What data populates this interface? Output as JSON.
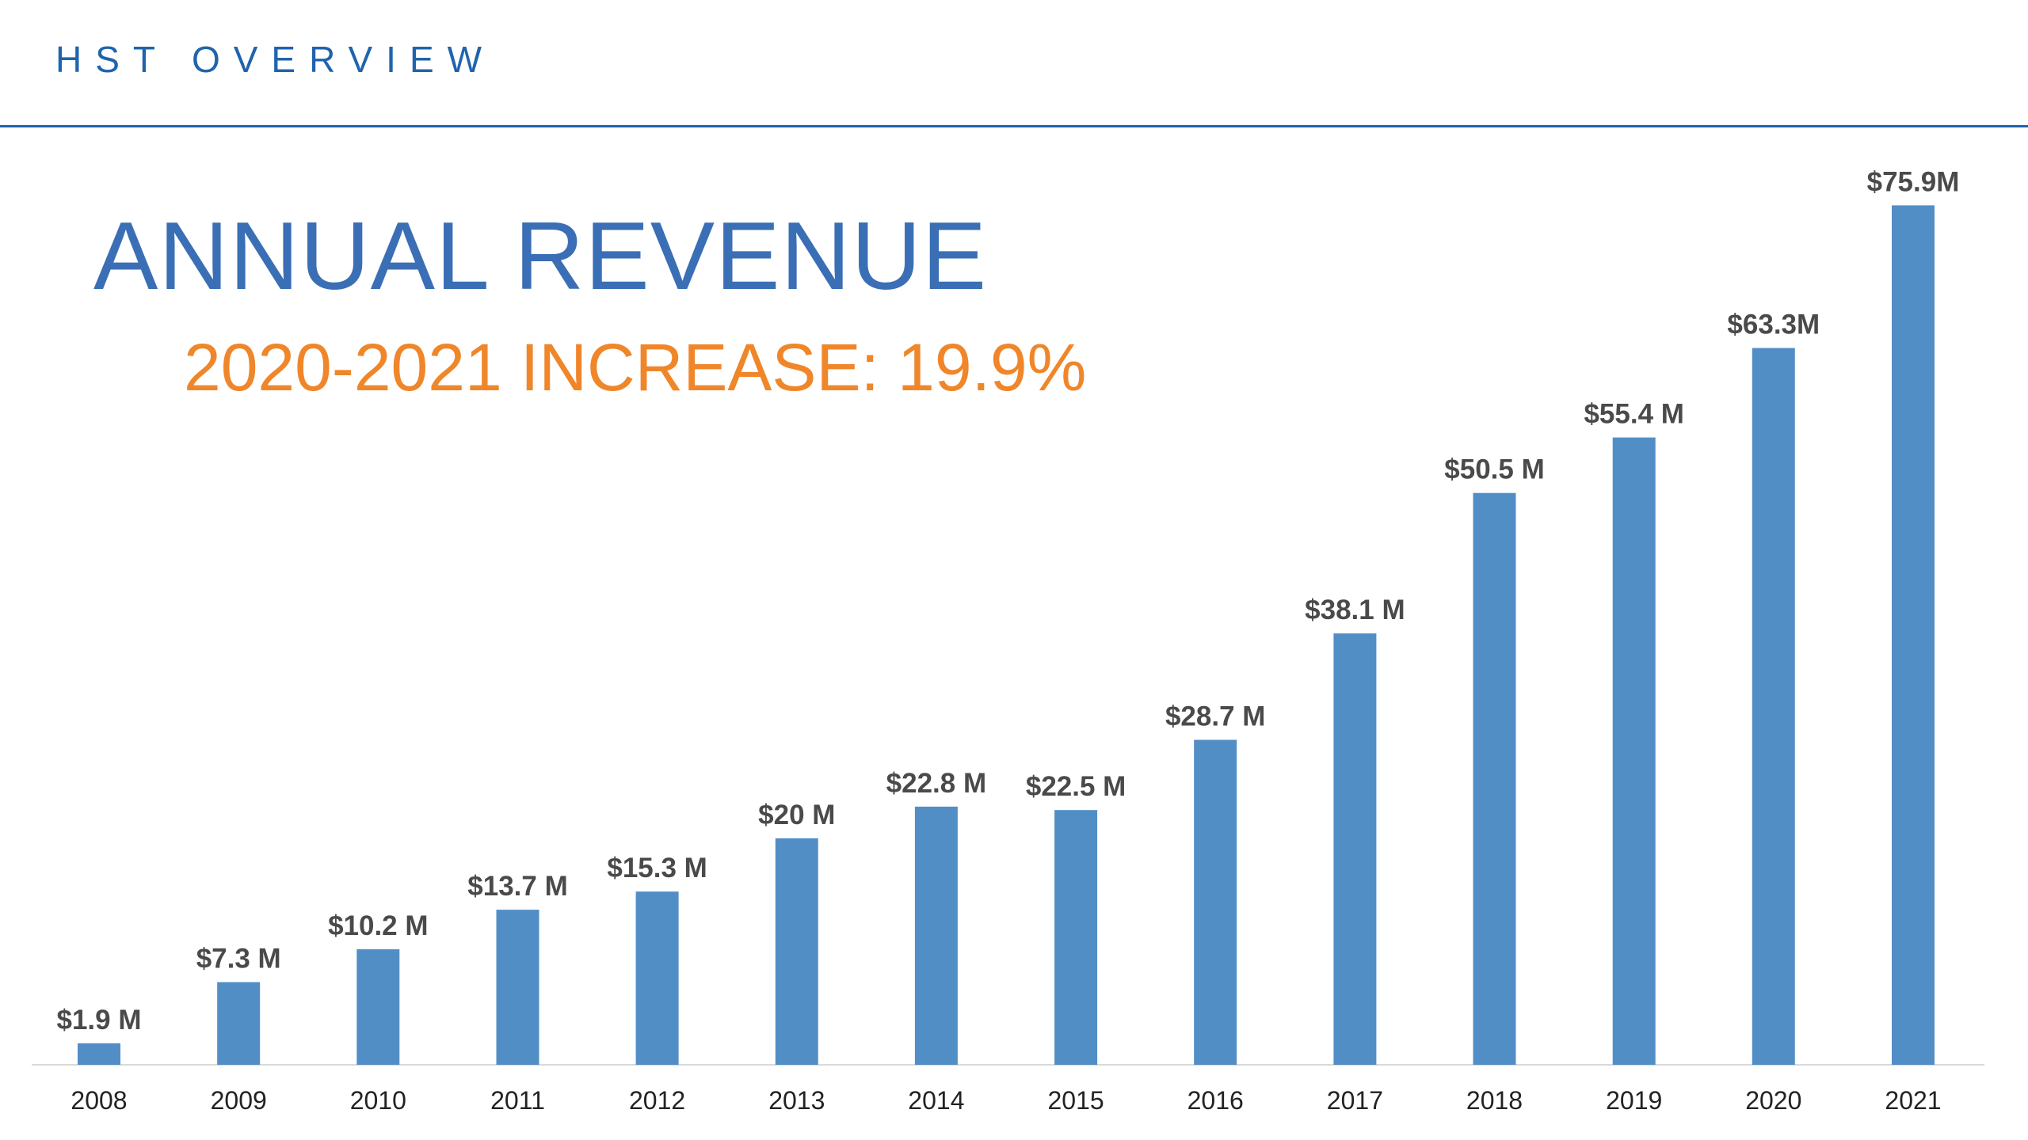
{
  "header": {
    "section_title": "HST OVERVIEW"
  },
  "colors": {
    "header": "#1f64ad",
    "title": "#3a6fb5",
    "subtitle": "#f0862a",
    "bar": "#528ec6",
    "data_label": "#4a4a4a"
  },
  "chart_data": {
    "type": "bar",
    "title": "ANNUAL REVENUE",
    "subtitle": "2020-2021 INCREASE: 19.9%",
    "categories": [
      "2008",
      "2009",
      "2010",
      "2011",
      "2012",
      "2013",
      "2014",
      "2015",
      "2016",
      "2017",
      "2018",
      "2019",
      "2020",
      "2021"
    ],
    "values": [
      1.9,
      7.3,
      10.2,
      13.7,
      15.3,
      20,
      22.8,
      22.5,
      28.7,
      38.1,
      50.5,
      55.4,
      63.3,
      75.9
    ],
    "data_labels": [
      "$1.9 M",
      "$7.3 M",
      "$10.2 M",
      "$13.7 M",
      "$15.3 M",
      "$20 M",
      "$22.8 M",
      "$22.5 M",
      "$28.7 M",
      "$38.1 M",
      "$50.5 M",
      "$55.4 M",
      "$63.3M",
      "$75.9M"
    ],
    "unit": "$M",
    "xlabel": "",
    "ylabel": "",
    "ylim": [
      0,
      76
    ],
    "grid": false,
    "legend": "none"
  }
}
